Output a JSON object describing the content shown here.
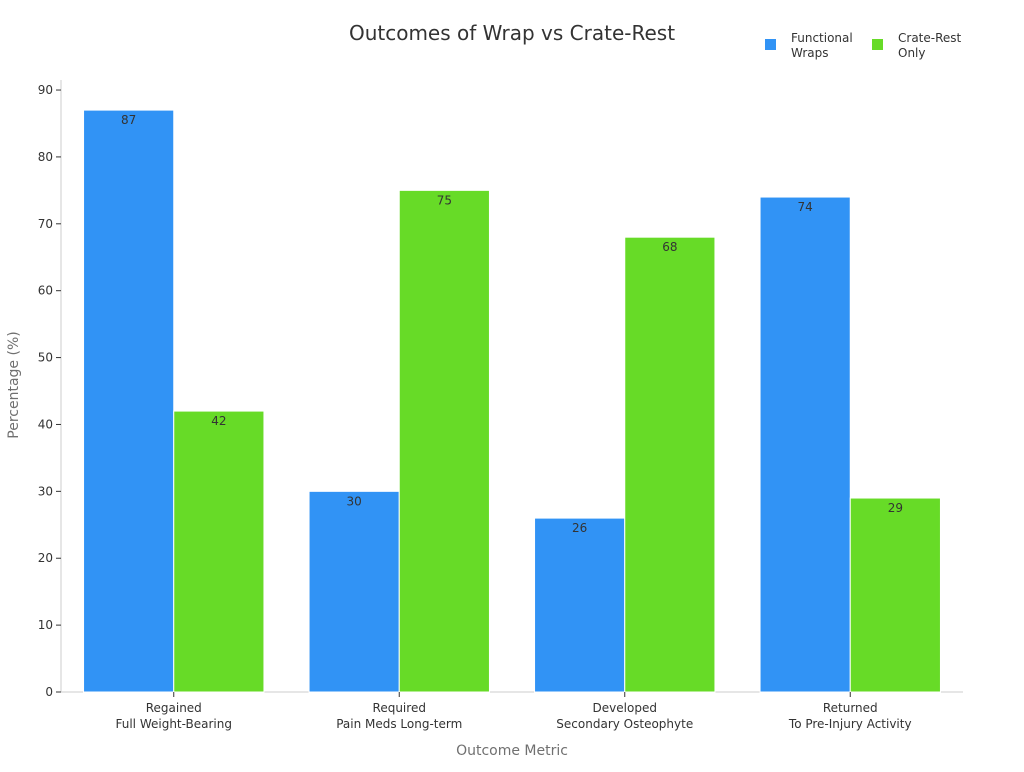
{
  "chart_data": {
    "type": "bar",
    "title": "Outcomes of Wrap vs Crate-Rest",
    "xlabel": "Outcome Metric",
    "ylabel": "Percentage (%)",
    "ylim": [
      0,
      90
    ],
    "yticks": [
      0,
      10,
      20,
      30,
      40,
      50,
      60,
      70,
      80,
      90
    ],
    "grid": false,
    "legend_position": "top-right",
    "categories": [
      [
        "Regained",
        "Full Weight-Bearing"
      ],
      [
        "Required",
        "Pain Meds Long-term"
      ],
      [
        "Developed",
        "Secondary Osteophyte"
      ],
      [
        "Returned",
        "To Pre-Injury Activity"
      ]
    ],
    "series": [
      {
        "name": [
          "Functional",
          "Wraps"
        ],
        "color": "#3193f5",
        "values": [
          87,
          30,
          26,
          74
        ]
      },
      {
        "name": [
          "Crate-Rest",
          "Only"
        ],
        "color": "#67db27",
        "values": [
          42,
          75,
          68,
          29
        ]
      }
    ],
    "axis_color": "#cccccc",
    "bar_edge_color": "#ffffff"
  }
}
